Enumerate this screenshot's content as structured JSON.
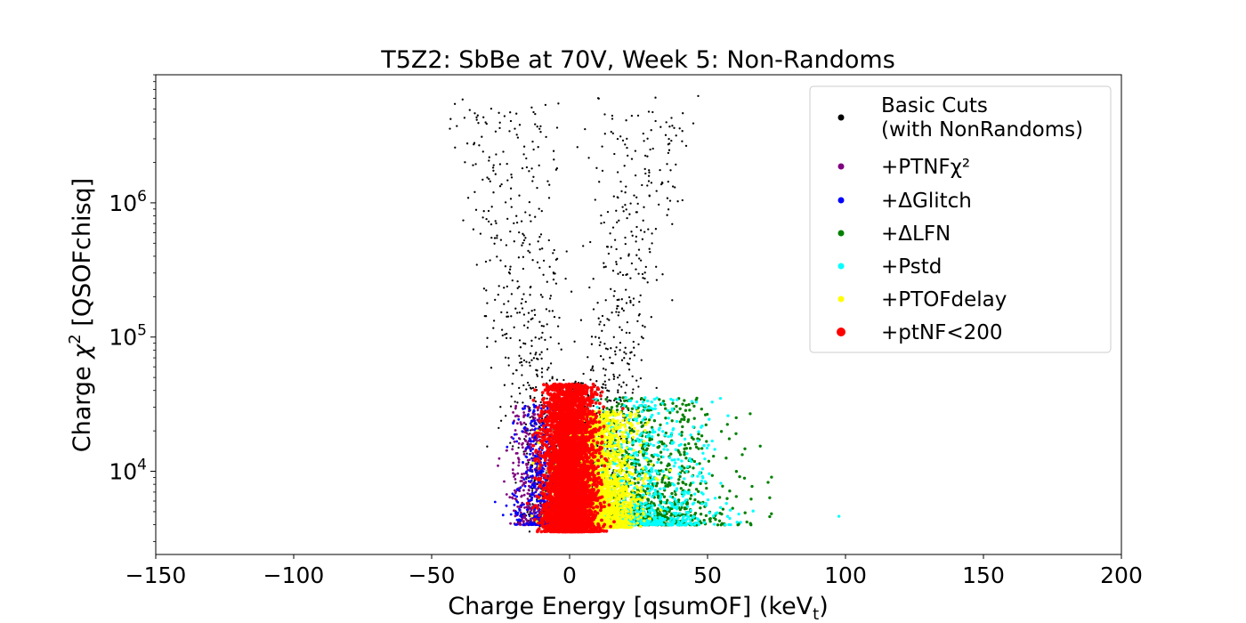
{
  "chart_data": {
    "type": "scatter",
    "title": "T5Z2: SbBe at 70V, Week 5: Non-Randoms",
    "xlabel_main": "Charge Energy [qsumOF] (keV",
    "xlabel_sub": "t",
    "xlabel_end": ")",
    "ylabel_main": "Charge ",
    "ylabel_chi": "χ",
    "ylabel_sup": "2",
    "ylabel_end": " [QSOFchisq]",
    "xlim": [
      -150,
      200
    ],
    "ylim": [
      2400,
      9000000
    ],
    "yscale": "log",
    "xticks": [
      {
        "value": -150,
        "label": "−150"
      },
      {
        "value": -100,
        "label": "−100"
      },
      {
        "value": -50,
        "label": "−50"
      },
      {
        "value": 0,
        "label": "0"
      },
      {
        "value": 50,
        "label": "50"
      },
      {
        "value": 100,
        "label": "100"
      },
      {
        "value": 150,
        "label": "150"
      },
      {
        "value": 200,
        "label": "200"
      }
    ],
    "yticks": [
      {
        "value": 10000,
        "base": "10",
        "exp": "4"
      },
      {
        "value": 100000,
        "base": "10",
        "exp": "5"
      },
      {
        "value": 1000000,
        "base": "10",
        "exp": "6"
      }
    ],
    "legend_position": "upper right",
    "series": [
      {
        "name": "Basic Cuts",
        "name_line2": "(with NonRandoms)",
        "color": "#000000",
        "marker_size": 1.5,
        "clusters": [
          {
            "x_mean": -7,
            "x_sd": 9,
            "logy_min": 3.6,
            "logy_max": 6.8,
            "count": 650,
            "shape": "vleft"
          },
          {
            "x_mean": 9,
            "x_sd": 8,
            "logy_min": 3.6,
            "logy_max": 6.8,
            "count": 650,
            "shape": "vright"
          },
          {
            "x_mean": 1,
            "x_sd": 6,
            "logy_min": 3.55,
            "logy_max": 4.7,
            "count": 500,
            "shape": "band"
          }
        ]
      },
      {
        "name": "+PTNFχ²",
        "color": "#800080",
        "marker_size": 2,
        "clusters": [
          {
            "x_mean": -12,
            "x_sd": 5,
            "logy_min": 3.6,
            "logy_max": 4.5,
            "count": 500,
            "shape": "band"
          }
        ]
      },
      {
        "name": "+ΔGlitch",
        "color": "#0000ff",
        "marker_size": 2,
        "clusters": [
          {
            "x_mean": -10,
            "x_sd": 5,
            "logy_min": 3.6,
            "logy_max": 4.5,
            "count": 450,
            "shape": "band"
          }
        ]
      },
      {
        "name": "+ΔLFN",
        "color": "#008000",
        "marker_size": 2.5,
        "clusters": [
          {
            "x_mean": 25,
            "x_sd": 18,
            "logy_min": 3.6,
            "logy_max": 4.55,
            "count": 900,
            "shape": "tail"
          }
        ]
      },
      {
        "name": "+Pstd",
        "color": "#00ffff",
        "marker_size": 2.5,
        "clusters": [
          {
            "x_mean": 24,
            "x_sd": 17,
            "logy_min": 3.6,
            "logy_max": 4.55,
            "count": 700,
            "shape": "tail"
          }
        ]
      },
      {
        "name": "+PTOFdelay",
        "color": "#ffff00",
        "marker_size": 2.5,
        "clusters": [
          {
            "x_mean": 10,
            "x_sd": 7,
            "logy_min": 3.58,
            "logy_max": 4.45,
            "count": 2200,
            "shape": "band"
          }
        ]
      },
      {
        "name": "+ptNF<200",
        "color": "#ff0000",
        "marker_size": 3,
        "clusters": [
          {
            "x_mean": 0,
            "x_sd": 4.5,
            "logy_min": 3.55,
            "logy_max": 4.65,
            "count": 4500,
            "shape": "band"
          }
        ]
      }
    ]
  }
}
